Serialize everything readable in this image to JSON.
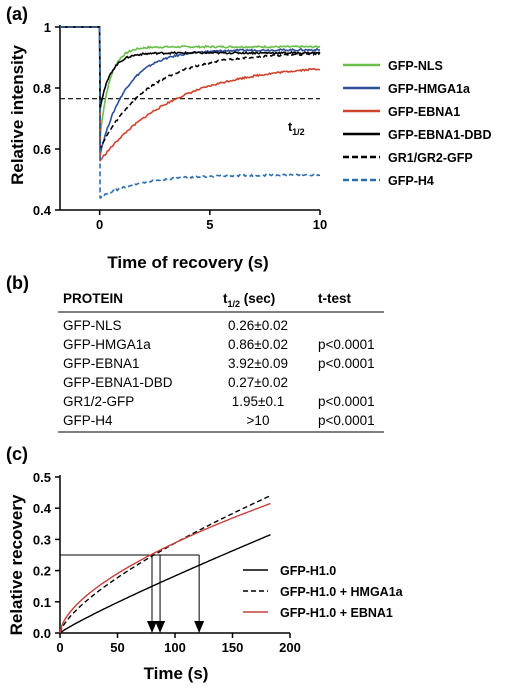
{
  "panels": {
    "a": "(a)",
    "b": "(b)",
    "c": "(c)"
  },
  "chart_data": [
    {
      "type": "line",
      "xlabel": "Time of recovery (s)",
      "ylabel": "Relative intensity",
      "xlim": [
        -1.8,
        10
      ],
      "ylim": [
        0.4,
        1.0
      ],
      "xticks": [
        "0",
        "5",
        "10"
      ],
      "yticks": [
        "0.4",
        "0.6",
        "0.8",
        "1"
      ],
      "legend_position": "right",
      "annotation": {
        "text": "t",
        "subscript": "1/2",
        "y": 0.765
      },
      "series": [
        {
          "name": "GFP-NLS",
          "color": "#6abf4b",
          "dash": "solid",
          "min": 0.63,
          "plateau": 0.935,
          "tau": 0.45
        },
        {
          "name": "GFP-HMGA1a",
          "color": "#2c4f9a",
          "dash": "solid",
          "min": 0.58,
          "plateau": 0.925,
          "tau": 1.2
        },
        {
          "name": "GFP-EBNA1",
          "color": "#d2432c",
          "dash": "solid",
          "min": 0.56,
          "plateau": 0.88,
          "tau": 3.4
        },
        {
          "name": "GFP-EBNA1-DBD",
          "color": "#000000",
          "dash": "solid",
          "min": 0.73,
          "plateau": 0.915,
          "tau": 0.5
        },
        {
          "name": "GR1/GR2-GFP",
          "color": "#000000",
          "dash": "dashed",
          "min": 0.6,
          "plateau": 0.915,
          "tau": 2.2
        },
        {
          "name": "GFP-H4",
          "color": "#2c6fb0",
          "dash": "dashed",
          "min": 0.44,
          "plateau": 0.515,
          "tau": 1.8
        }
      ]
    },
    {
      "type": "table",
      "columns": [
        "PROTEIN",
        "t",
        "t-test"
      ],
      "t_col_sub": "1/2",
      "t_col_suffix": " (sec)",
      "rows": [
        [
          "GFP-NLS",
          "0.26±0.02",
          ""
        ],
        [
          "GFP-HMGA1a",
          "0.86±0.02",
          "p<0.0001"
        ],
        [
          "GFP-EBNA1",
          "3.92±0.09",
          "p<0.0001"
        ],
        [
          "GFP-EBNA1-DBD",
          "0.27±0.02",
          ""
        ],
        [
          "GR1/2-GFP",
          "1.95±0.1",
          "p<0.0001"
        ],
        [
          "GFP-H4",
          ">10",
          "p<0.0001"
        ]
      ]
    },
    {
      "type": "line",
      "xlabel": "Time (s)",
      "ylabel": "Relative recovery",
      "xlim": [
        0,
        200
      ],
      "ylim": [
        0,
        0.5
      ],
      "xticks": [
        "0",
        "50",
        "100",
        "150",
        "200"
      ],
      "yticks": [
        "0.0",
        "0.1",
        "0.2",
        "0.3",
        "0.4",
        "0.5"
      ],
      "legend_position": "right",
      "threshold_y": 0.25,
      "half_times_x": [
        80,
        87,
        121
      ],
      "series": [
        {
          "name": "GFP-H1.0",
          "color": "#000000",
          "dash": "solid",
          "end": 0.315,
          "curv": 0.9
        },
        {
          "name": "GFP-H1.0 + HMGA1a",
          "color": "#000000",
          "dash": "dashed",
          "end": 0.44,
          "curv": 0.7
        },
        {
          "name": "GFP-H1.0 + EBNA1",
          "color": "#c8403a",
          "dash": "solid",
          "end": 0.415,
          "curv": 0.6
        }
      ]
    }
  ]
}
